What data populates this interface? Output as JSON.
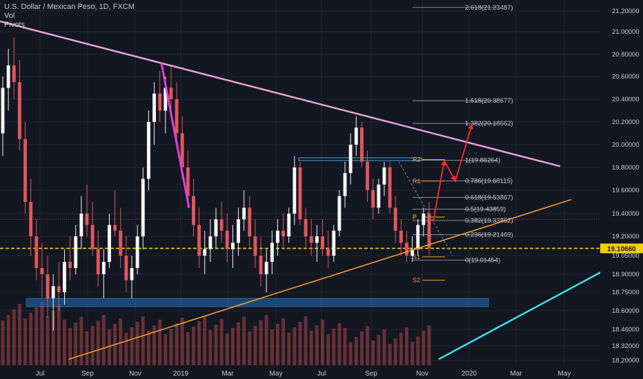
{
  "legend": {
    "symbol": "U.S. Dollar / Mexican Peso, 1D, FXCM",
    "vol": "Vol",
    "pivots": "Pivots"
  },
  "colors": {
    "background": "#131722",
    "up": "#f7f7f7",
    "down": "#e0575b",
    "pink_trend": "#e6a4d4",
    "orange_trend": "#f59b2b",
    "cyan_trend": "#40e0e8",
    "magenta": "#e040e0",
    "red_arrow": "#ff2a2a",
    "blue_zone": "#1e6fbf",
    "yellow_line": "#f5d000",
    "volume": "#b04646"
  },
  "chart_data": {
    "type": "candlestick",
    "y_ticks": [
      "21.20000",
      "21.00000",
      "20.80000",
      "20.60000",
      "20.40000",
      "20.20000",
      "20.00000",
      "19.80000",
      "19.60000",
      "19.40000",
      "19.20000",
      "19.05000",
      "18.90000",
      "18.75000",
      "18.60000",
      "18.46000",
      "18.32000",
      "18.20000"
    ],
    "x_ticks": [
      "Jul",
      "Sep",
      "Nov",
      "2019",
      "Mar",
      "May",
      "Jul",
      "Sep",
      "Nov",
      "2020",
      "Mar",
      "May"
    ],
    "current_price": "19.10660",
    "fib_levels": [
      {
        "label": "2.618(21.23487)",
        "value": 21.23487
      },
      {
        "label": "1.618(20.38677)",
        "value": 20.38677
      },
      {
        "label": "1.382(20.18662)",
        "value": 20.18662
      },
      {
        "label": "1(19.86264)",
        "value": 19.86264
      },
      {
        "label": "0.786(19.68115)",
        "value": 19.68115
      },
      {
        "label": "0.618(19.53867)",
        "value": 19.53867
      },
      {
        "label": "0.5(19.43859)",
        "value": 19.43859
      },
      {
        "label": "0.382(19.33852)",
        "value": 19.33852
      },
      {
        "label": "0.236(19.21469)",
        "value": 19.21469
      },
      {
        "label": "0(19.01454)",
        "value": 19.01454
      }
    ],
    "pivots": [
      {
        "label": "R2",
        "value": 19.87
      },
      {
        "label": "R1",
        "value": 19.68
      },
      {
        "label": "P",
        "value": 19.37
      },
      {
        "label": "S1",
        "value": 19.04
      },
      {
        "label": "S2",
        "value": 18.85
      }
    ],
    "candles": [
      [
        20.1,
        20.6,
        19.9,
        20.5
      ],
      [
        20.5,
        20.85,
        20.3,
        20.7
      ],
      [
        20.7,
        20.95,
        20.4,
        20.55
      ],
      [
        20.55,
        20.75,
        19.95,
        20.05
      ],
      [
        20.05,
        20.2,
        19.4,
        19.5
      ],
      [
        19.5,
        19.7,
        19.05,
        19.2
      ],
      [
        19.2,
        19.35,
        18.85,
        18.95
      ],
      [
        18.95,
        19.15,
        18.7,
        18.9
      ],
      [
        18.9,
        19.05,
        18.55,
        18.7
      ],
      [
        18.7,
        18.9,
        18.45,
        18.8
      ],
      [
        18.8,
        19.0,
        18.6,
        18.75
      ],
      [
        18.75,
        19.1,
        18.65,
        19.0
      ],
      [
        19.0,
        19.2,
        18.85,
        18.95
      ],
      [
        18.95,
        19.3,
        18.9,
        19.2
      ],
      [
        19.2,
        19.55,
        19.1,
        19.4
      ],
      [
        19.4,
        19.65,
        19.2,
        19.3
      ],
      [
        19.3,
        19.5,
        19.05,
        19.1
      ],
      [
        19.1,
        19.25,
        18.8,
        18.9
      ],
      [
        18.9,
        19.1,
        18.7,
        19.0
      ],
      [
        19.0,
        19.4,
        18.95,
        19.3
      ],
      [
        19.3,
        19.6,
        19.2,
        19.25
      ],
      [
        19.25,
        19.45,
        18.95,
        19.05
      ],
      [
        19.05,
        19.2,
        18.75,
        18.85
      ],
      [
        18.85,
        19.05,
        18.7,
        18.95
      ],
      [
        18.95,
        19.3,
        18.9,
        19.2
      ],
      [
        19.2,
        19.8,
        19.1,
        19.7
      ],
      [
        19.7,
        20.3,
        19.6,
        20.2
      ],
      [
        20.2,
        20.55,
        20.0,
        20.45
      ],
      [
        20.45,
        20.65,
        20.2,
        20.3
      ],
      [
        20.3,
        20.6,
        20.1,
        20.5
      ],
      [
        20.5,
        20.7,
        20.25,
        20.4
      ],
      [
        20.4,
        20.55,
        20.0,
        20.1
      ],
      [
        20.1,
        20.25,
        19.7,
        19.8
      ],
      [
        19.8,
        19.95,
        19.45,
        19.55
      ],
      [
        19.55,
        19.7,
        19.2,
        19.3
      ],
      [
        19.3,
        19.45,
        18.95,
        19.05
      ],
      [
        19.05,
        19.25,
        18.9,
        19.1
      ],
      [
        19.1,
        19.35,
        19.0,
        19.2
      ],
      [
        19.2,
        19.45,
        19.1,
        19.35
      ],
      [
        19.35,
        19.5,
        19.15,
        19.25
      ],
      [
        19.25,
        19.4,
        19.0,
        19.1
      ],
      [
        19.1,
        19.3,
        18.95,
        19.15
      ],
      [
        19.15,
        19.45,
        19.05,
        19.35
      ],
      [
        19.35,
        19.6,
        19.25,
        19.45
      ],
      [
        19.45,
        19.55,
        19.1,
        19.2
      ],
      [
        19.2,
        19.35,
        18.95,
        19.05
      ],
      [
        19.05,
        19.2,
        18.8,
        18.9
      ],
      [
        18.9,
        19.1,
        18.75,
        19.0
      ],
      [
        19.0,
        19.25,
        18.9,
        19.15
      ],
      [
        19.15,
        19.35,
        19.05,
        19.25
      ],
      [
        19.25,
        19.4,
        19.1,
        19.2
      ],
      [
        19.2,
        19.45,
        19.15,
        19.4
      ],
      [
        19.4,
        19.9,
        19.3,
        19.8
      ],
      [
        19.8,
        19.85,
        19.3,
        19.35
      ],
      [
        19.35,
        19.45,
        19.1,
        19.2
      ],
      [
        19.2,
        19.35,
        19.05,
        19.15
      ],
      [
        19.15,
        19.3,
        19.0,
        19.2
      ],
      [
        19.2,
        19.35,
        19.05,
        19.1
      ],
      [
        19.1,
        19.25,
        18.95,
        19.05
      ],
      [
        19.05,
        19.3,
        19.0,
        19.25
      ],
      [
        19.25,
        19.6,
        19.2,
        19.55
      ],
      [
        19.55,
        19.85,
        19.45,
        19.75
      ],
      [
        19.75,
        20.1,
        19.65,
        20.0
      ],
      [
        20.0,
        20.25,
        19.9,
        20.15
      ],
      [
        20.15,
        20.2,
        19.8,
        19.85
      ],
      [
        19.85,
        19.95,
        19.5,
        19.6
      ],
      [
        19.6,
        19.7,
        19.35,
        19.45
      ],
      [
        19.45,
        19.7,
        19.4,
        19.65
      ],
      [
        19.65,
        19.85,
        19.55,
        19.8
      ],
      [
        19.8,
        19.85,
        19.4,
        19.45
      ],
      [
        19.45,
        19.55,
        19.15,
        19.25
      ],
      [
        19.25,
        19.35,
        19.05,
        19.15
      ],
      [
        19.15,
        19.25,
        19.0,
        19.05
      ],
      [
        19.05,
        19.2,
        19.0,
        19.1
      ],
      [
        19.1,
        19.35,
        19.05,
        19.3
      ],
      [
        19.3,
        19.45,
        19.2,
        19.4
      ],
      [
        19.4,
        19.5,
        19.05,
        19.11
      ]
    ]
  }
}
